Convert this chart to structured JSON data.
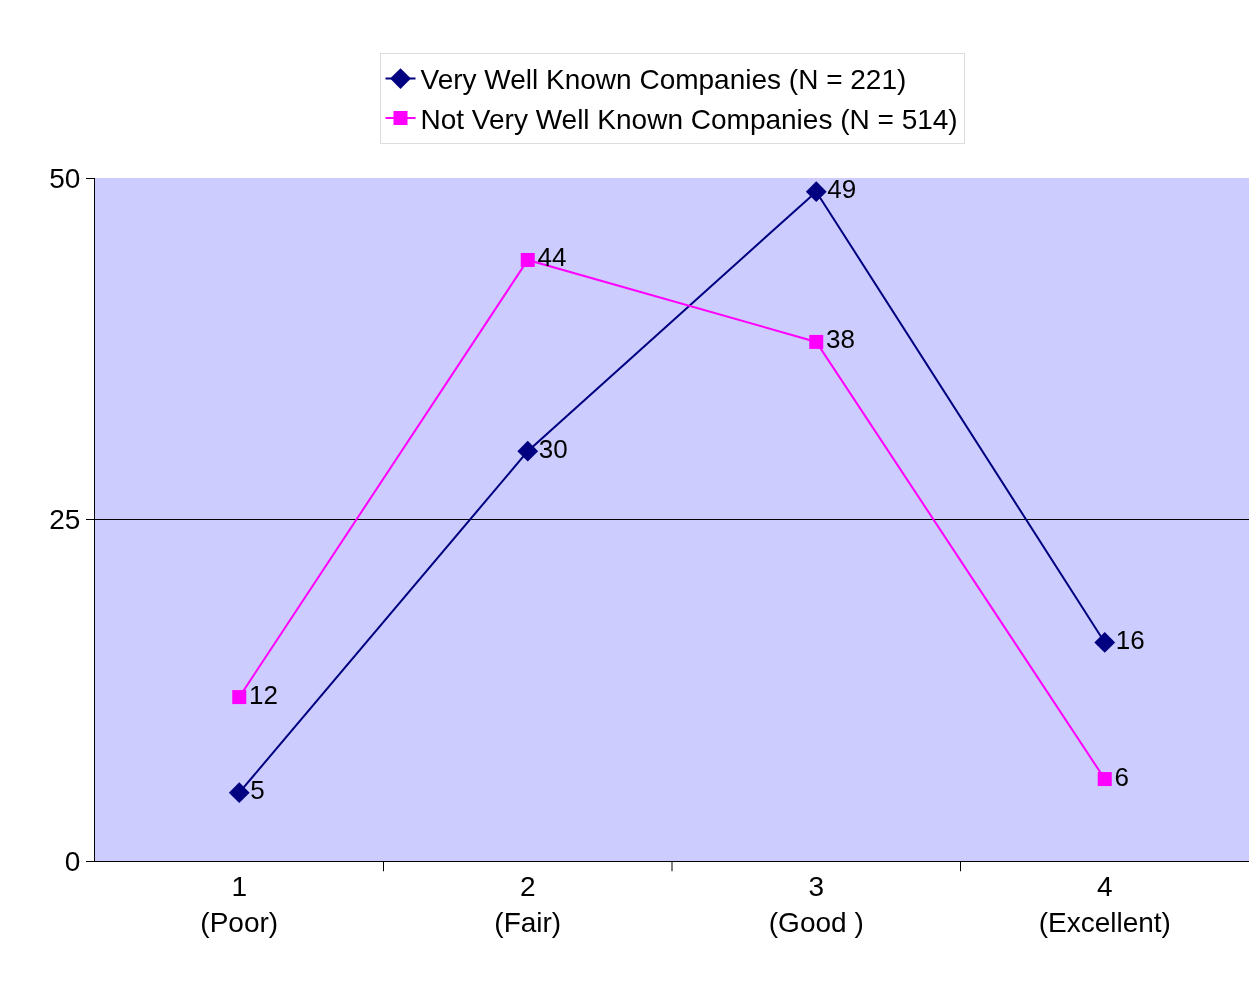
{
  "chart_data": {
    "type": "line",
    "categories": [
      "1\n(Poor)",
      "2\n(Fair)",
      "3\n(Good )",
      "4\n(Excellent)"
    ],
    "series": [
      {
        "name": "Very Well Known Companies (N = 221)",
        "color": "#000080",
        "marker": "diamond",
        "values": [
          5,
          30,
          49,
          16
        ]
      },
      {
        "name": "Not Very Well Known Companies (N = 514)",
        "color": "#ff00ff",
        "marker": "square",
        "values": [
          12,
          44,
          38,
          6
        ]
      }
    ],
    "ylim": [
      0,
      50
    ],
    "yticks": [
      0,
      25,
      50
    ],
    "grid": "y",
    "legend": "top",
    "data_labels": true
  }
}
